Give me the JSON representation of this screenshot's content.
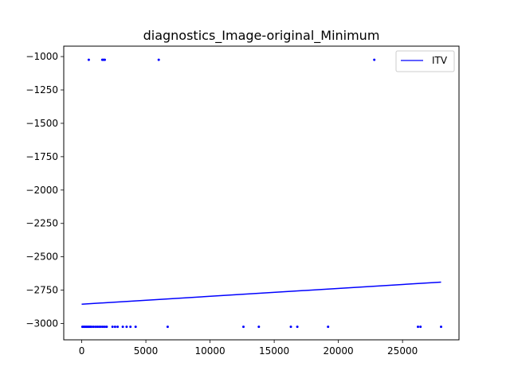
{
  "chart_data": {
    "type": "scatter",
    "title": "diagnostics_Image-original_Minimum",
    "xlabel": "",
    "ylabel": "",
    "xlim": [
      -1400,
      29400
    ],
    "ylim": [
      -3122,
      -922
    ],
    "xticks": [
      0,
      5000,
      10000,
      15000,
      20000,
      25000
    ],
    "xtick_labels": [
      "0",
      "5000",
      "10000",
      "15000",
      "20000",
      "25000"
    ],
    "yticks": [
      -1000,
      -1250,
      -1500,
      -1750,
      -2000,
      -2250,
      -2500,
      -2750,
      -3000
    ],
    "ytick_labels": [
      "−1000",
      "−1250",
      "−1500",
      "−1750",
      "−2000",
      "−2250",
      "−2500",
      "−2750",
      "−3000"
    ],
    "grid": false,
    "legend_position": "top-right",
    "colors": {
      "points": "#0000ff",
      "line": "#0000ff"
    },
    "series": [
      {
        "kind": "points",
        "x": [
          550,
          1600,
          1700,
          1800,
          6000,
          22800,
          50,
          150,
          250,
          350,
          450,
          550,
          650,
          750,
          900,
          1050,
          1200,
          1350,
          1500,
          1650,
          1800,
          1950,
          2400,
          2600,
          2800,
          3200,
          3500,
          3800,
          4200,
          6700,
          12600,
          13800,
          16300,
          16800,
          19200,
          26200,
          26400,
          28000
        ],
        "y": [
          -1024,
          -1024,
          -1024,
          -1024,
          -1024,
          -1024,
          -3024,
          -3024,
          -3024,
          -3024,
          -3024,
          -3024,
          -3024,
          -3024,
          -3024,
          -3024,
          -3024,
          -3024,
          -3024,
          -3024,
          -3024,
          -3024,
          -3024,
          -3024,
          -3024,
          -3024,
          -3024,
          -3024,
          -3024,
          -3024,
          -3024,
          -3024,
          -3024,
          -3024,
          -3024,
          -3024,
          -3024,
          -3024
        ]
      },
      {
        "name": "ITV",
        "kind": "line",
        "x": [
          0,
          28000
        ],
        "y": [
          -2855,
          -2690
        ]
      }
    ]
  }
}
